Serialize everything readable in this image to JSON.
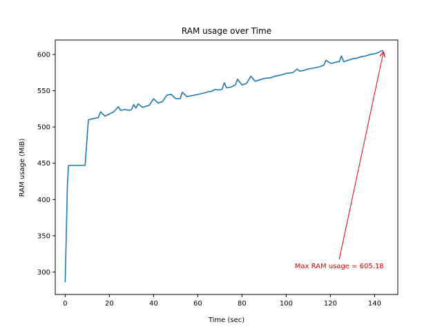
{
  "chart_data": {
    "type": "line",
    "title": "RAM usage over Time",
    "xlabel": "Time (sec)",
    "ylabel": "RAM usage (MiB)",
    "xlim": [
      -4.5,
      150.5
    ],
    "ylim": [
      269,
      620
    ],
    "xticks": [
      0,
      20,
      40,
      60,
      80,
      100,
      120,
      140
    ],
    "yticks": [
      300,
      350,
      400,
      450,
      500,
      550,
      600
    ],
    "grid": false,
    "legend": "none",
    "series": [
      {
        "color": "#1f77b4",
        "x": [
          0,
          1,
          1.5,
          3,
          6,
          9,
          10.5,
          12,
          15,
          16,
          18,
          20,
          22,
          24,
          25,
          27,
          29,
          30,
          31,
          32,
          33,
          35,
          38,
          40,
          42,
          44,
          46,
          48,
          50,
          52,
          53,
          55,
          57,
          60,
          63,
          65,
          66,
          68,
          69,
          71,
          72,
          73,
          75,
          77,
          78,
          80,
          82,
          84,
          86,
          88,
          90,
          93,
          95,
          98,
          100,
          103,
          105,
          106,
          108,
          110,
          112,
          115,
          117,
          118,
          120,
          121,
          123,
          124,
          125,
          126,
          128,
          130,
          132,
          134,
          136,
          138,
          140,
          142,
          143,
          144
        ],
        "y": [
          286,
          420,
          447,
          447,
          447,
          447,
          510,
          511,
          513,
          521,
          515,
          518,
          521,
          528,
          523,
          524,
          523,
          524,
          531,
          526,
          532,
          527,
          530,
          539,
          533,
          535,
          544,
          545,
          539,
          539,
          548,
          542,
          543,
          545,
          547,
          549,
          549,
          552,
          551,
          552,
          561,
          554,
          555,
          558,
          566,
          558,
          560,
          570,
          563,
          565,
          567,
          568,
          570,
          572,
          574,
          575,
          580,
          577,
          578,
          580,
          581,
          583,
          585,
          592,
          588,
          588,
          590,
          590,
          598,
          590,
          592,
          594,
          595,
          597,
          598,
          600,
          601,
          603,
          605,
          605.18
        ]
      }
    ],
    "annotation": {
      "text": "Max RAM usage = 605.18",
      "point": [
        144,
        605.18
      ],
      "text_position": [
        124,
        305
      ],
      "color": "#e00000"
    }
  }
}
